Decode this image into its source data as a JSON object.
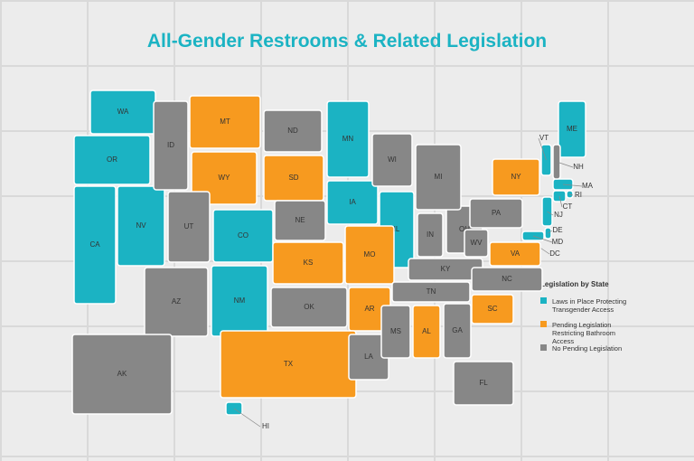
{
  "title": "All-Gender Restrooms & Related Legislation",
  "legend": {
    "title": "Legislation by State",
    "items": [
      {
        "label": "Laws in Place Protecting Transgender Access",
        "color": "#1bb3c3",
        "states": [
          "WA",
          "OR",
          "CA",
          "NV",
          "CO",
          "NM",
          "MN",
          "IA",
          "IL",
          "VT",
          "ME",
          "MA",
          "RI",
          "CT",
          "NJ",
          "DE",
          "MD",
          "DC",
          "HI"
        ]
      },
      {
        "label": "Pending Legislation Restricting Bathroom Access",
        "color": "#f79a1f",
        "states": [
          "MT",
          "WY",
          "SD",
          "KS",
          "MO",
          "AR",
          "TX",
          "AL",
          "SC",
          "VA",
          "NY"
        ]
      },
      {
        "label": "No Pending Legislation",
        "color": "#878787",
        "states": [
          "ID",
          "UT",
          "AZ",
          "ND",
          "NE",
          "OK",
          "LA",
          "MS",
          "TN",
          "GA",
          "FL",
          "KY",
          "IN",
          "OH",
          "MI",
          "WI",
          "WV",
          "PA",
          "NC",
          "NH",
          "AK"
        ]
      }
    ]
  }
}
